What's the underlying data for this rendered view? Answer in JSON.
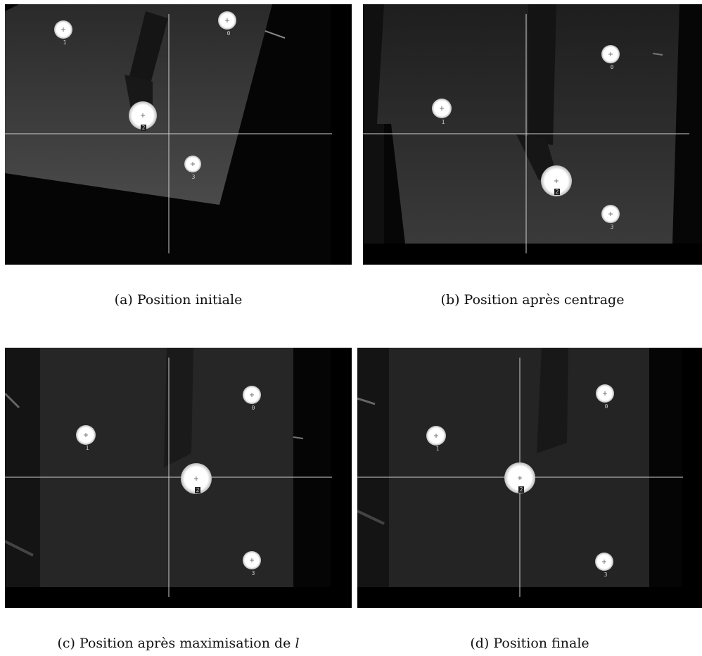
{
  "figure": {
    "panels": [
      {
        "id": "a",
        "caption": "(a) Position initiale",
        "markers": [
          {
            "label": "0"
          },
          {
            "label": "1"
          },
          {
            "label": "2"
          },
          {
            "label": "3"
          }
        ]
      },
      {
        "id": "b",
        "caption": "(b) Position après centrage",
        "markers": [
          {
            "label": "0"
          },
          {
            "label": "1"
          },
          {
            "label": "2"
          },
          {
            "label": "3"
          }
        ]
      },
      {
        "id": "c",
        "caption_prefix": "(c) Position après maximisation de",
        "caption_var": "l",
        "markers": [
          {
            "label": "0"
          },
          {
            "label": "1"
          },
          {
            "label": "2"
          },
          {
            "label": "3"
          }
        ]
      },
      {
        "id": "d",
        "caption": "(d) Position finale",
        "markers": [
          {
            "label": "0"
          },
          {
            "label": "1"
          },
          {
            "label": "2"
          },
          {
            "label": "3"
          }
        ]
      }
    ]
  }
}
